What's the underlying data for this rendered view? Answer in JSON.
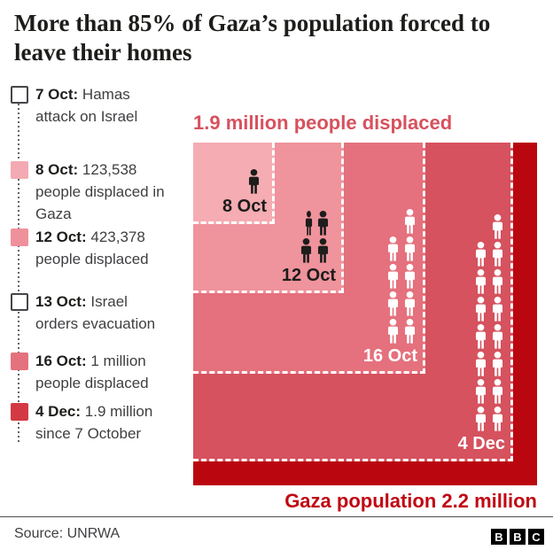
{
  "header": {
    "title": "More than 85% of Gaza’s population forced to leave their homes"
  },
  "timeline": {
    "items": [
      {
        "date": "7 Oct:",
        "text": "Hamas attack on Israel",
        "swatch_color": "#ffffff",
        "swatch_style": "outline"
      },
      {
        "date": "8 Oct:",
        "text": "123,538 people displaced in Gaza",
        "swatch_color": "#f3aab2",
        "swatch_style": "filled"
      },
      {
        "date": "12 Oct:",
        "text": "423,378 people displaced",
        "swatch_color": "#ee919b",
        "swatch_style": "filled"
      },
      {
        "date": "13 Oct:",
        "text": "Israel orders evacuation",
        "swatch_color": "#ffffff",
        "swatch_style": "outline"
      },
      {
        "date": "16 Oct:",
        "text": "1 million people displaced",
        "swatch_color": "#e4727e",
        "swatch_style": "filled"
      },
      {
        "date": "4 Dec:",
        "text": "1.9 million since 7 October",
        "swatch_color": "#d23944",
        "swatch_style": "filled"
      }
    ]
  },
  "chart": {
    "heading": "1.9 million people displaced",
    "heading_color": "#d6525e",
    "total_label": "Gaza population 2.2 million",
    "total_label_color": "#c00813",
    "background_color": "#ba060f",
    "dash_color": "#ffffff",
    "squares": [
      {
        "label": "8 Oct",
        "color": "#f5acb3",
        "text_color": "#1d1d1b",
        "icon_color": "#1d1d1b",
        "icon_count": 1,
        "arrangement": "single"
      },
      {
        "label": "12 Oct",
        "color": "#ef939c",
        "text_color": "#1d1d1b",
        "icon_color": "#1d1d1b",
        "icon_count": 4,
        "arrangement": "grid",
        "first_icon_thin": true
      },
      {
        "label": "16 Oct",
        "color": "#e4717d",
        "text_color": "#ffffff",
        "icon_color": "#ffffff",
        "icon_count": 9,
        "arrangement": "column"
      },
      {
        "label": "4 Dec",
        "color": "#d5525e",
        "text_color": "#ffffff",
        "icon_color": "#ffffff",
        "icon_count": 15,
        "arrangement": "column"
      }
    ]
  },
  "chart_data": {
    "type": "area",
    "variant": "nested-proportional-squares",
    "title": "1.9 million people displaced",
    "categories": [
      "8 Oct",
      "12 Oct",
      "16 Oct",
      "4 Dec"
    ],
    "values": [
      123538,
      423378,
      1000000,
      1900000
    ],
    "total": 2200000,
    "total_label": "Gaza population 2.2 million",
    "side_fractions": [
      0.237,
      0.439,
      0.674,
      0.929
    ],
    "annotations": [
      "7 Oct: Hamas attack on Israel",
      "13 Oct: Israel orders evacuation"
    ],
    "legend_position": "left",
    "grid": false
  },
  "footer": {
    "source": "Source: UNRWA",
    "logo_letters": [
      "B",
      "B",
      "C"
    ]
  }
}
